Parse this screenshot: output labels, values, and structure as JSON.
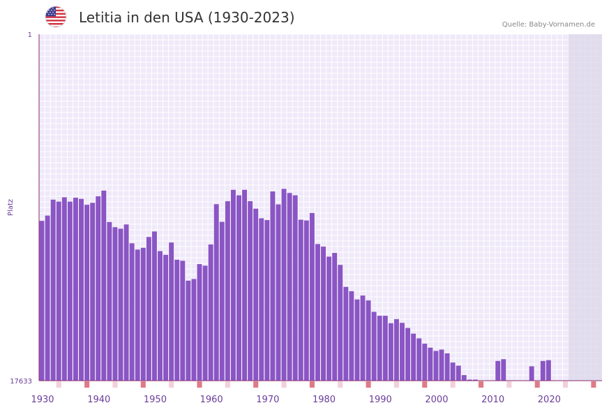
{
  "header": {
    "title": "Letitia in den USA (1930-2023)",
    "source": "Quelle: Baby-Vornamen.de",
    "flag_icon": "us-flag-icon"
  },
  "colors": {
    "bar": "#8a55c4",
    "plot_bg": "#efe9f9",
    "grid": "#ffffff",
    "axis": "#8a2a6a",
    "future_shade": "#dcd6e8",
    "decade_marker": "#e07a86",
    "half_marker": "#f3d0d8"
  },
  "chart_data": {
    "type": "bar",
    "title": "Letitia in den USA (1930-2023)",
    "ylabel": "Platz",
    "ylim": [
      17633,
      1
    ],
    "y_inverted": true,
    "y_tick_labels": [
      "1",
      "17633"
    ],
    "x_tick_labels": [
      "1930",
      "1940",
      "1950",
      "1960",
      "1970",
      "1980",
      "1990",
      "2000",
      "2010",
      "2020"
    ],
    "categories": [
      1930,
      1931,
      1932,
      1933,
      1934,
      1935,
      1936,
      1937,
      1938,
      1939,
      1940,
      1941,
      1942,
      1943,
      1944,
      1945,
      1946,
      1947,
      1948,
      1949,
      1950,
      1951,
      1952,
      1953,
      1954,
      1955,
      1956,
      1957,
      1958,
      1959,
      1960,
      1961,
      1962,
      1963,
      1964,
      1965,
      1966,
      1967,
      1968,
      1969,
      1970,
      1971,
      1972,
      1973,
      1974,
      1975,
      1976,
      1977,
      1978,
      1979,
      1980,
      1981,
      1982,
      1983,
      1984,
      1985,
      1986,
      1987,
      1988,
      1989,
      1990,
      1991,
      1992,
      1993,
      1994,
      1995,
      1996,
      1997,
      1998,
      1999,
      2000,
      2001,
      2002,
      2003,
      2004,
      2005,
      2006,
      2007,
      2008,
      2009,
      2010,
      2011,
      2012,
      2013,
      2014,
      2015,
      2016,
      2017,
      2018,
      2019,
      2020,
      2021,
      2022,
      2023
    ],
    "values": [
      9500,
      9230,
      8420,
      8520,
      8300,
      8520,
      8320,
      8380,
      8680,
      8580,
      8250,
      7960,
      9560,
      9820,
      9900,
      9680,
      10640,
      10960,
      10870,
      10320,
      10040,
      11040,
      11230,
      10600,
      11480,
      11530,
      12540,
      12460,
      11700,
      11780,
      10700,
      8650,
      9550,
      8500,
      7920,
      8200,
      7920,
      8500,
      8880,
      9370,
      9460,
      8000,
      8660,
      7870,
      8080,
      8200,
      9440,
      9480,
      9100,
      10680,
      10810,
      11320,
      11130,
      11740,
      12860,
      13080,
      13500,
      13300,
      13550,
      14130,
      14330,
      14330,
      14710,
      14500,
      14690,
      14950,
      15240,
      15480,
      15750,
      15950,
      16120,
      16050,
      16240,
      16710,
      16870,
      17350,
      17580,
      17580,
      0,
      0,
      0,
      16630,
      16540,
      0,
      0,
      0,
      0,
      16900,
      0,
      16630,
      16590,
      0,
      0,
      0
    ],
    "future_shaded_from": 2024
  }
}
